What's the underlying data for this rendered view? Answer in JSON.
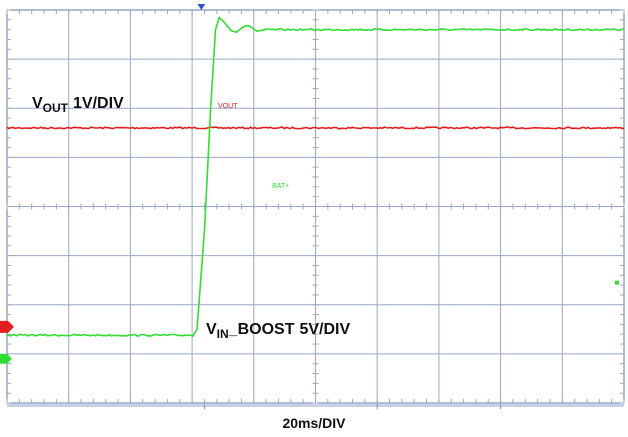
{
  "chart_data": {
    "type": "line",
    "title": "",
    "xlabel": "20ms/DIV",
    "ylabel": "",
    "divisions": {
      "x": 10,
      "y": 8
    },
    "xlim_div": [
      0,
      10
    ],
    "ylim_div": [
      0,
      8
    ],
    "grid": true,
    "series": [
      {
        "name": "VOUT",
        "label_main": "V",
        "label_sub": "OUT",
        "label_scale": "1V/DIV",
        "trace_tag": "VOUT",
        "color": "#e02020",
        "points_div": [
          [
            0,
            5.6
          ],
          [
            10,
            5.6
          ]
        ]
      },
      {
        "name": "VIN_BOOST",
        "label_main": "V",
        "label_sub": "IN",
        "label_suffix": "_BOOST",
        "label_scale": "5V/DIV",
        "trace_tag": "BAT+",
        "color": "#33dd33",
        "points_div": [
          [
            0,
            1.38
          ],
          [
            3.02,
            1.38
          ],
          [
            3.08,
            1.5
          ],
          [
            3.2,
            3.5
          ],
          [
            3.3,
            6.0
          ],
          [
            3.38,
            7.6
          ],
          [
            3.44,
            7.85
          ],
          [
            3.52,
            7.75
          ],
          [
            3.62,
            7.6
          ],
          [
            3.72,
            7.55
          ],
          [
            3.82,
            7.65
          ],
          [
            3.92,
            7.68
          ],
          [
            4.05,
            7.57
          ],
          [
            4.2,
            7.6
          ],
          [
            10,
            7.6
          ]
        ]
      }
    ],
    "markers": {
      "trigger_time_div": 3.15,
      "channel1_level_div": 1.55,
      "channel2_level_div": 0.9,
      "right_dot_level_div": 2.45
    },
    "colors": {
      "background": "#ffffff",
      "grid": "#9aa7c8",
      "axis": "#6677aa",
      "trigger": "#3355cc"
    }
  }
}
